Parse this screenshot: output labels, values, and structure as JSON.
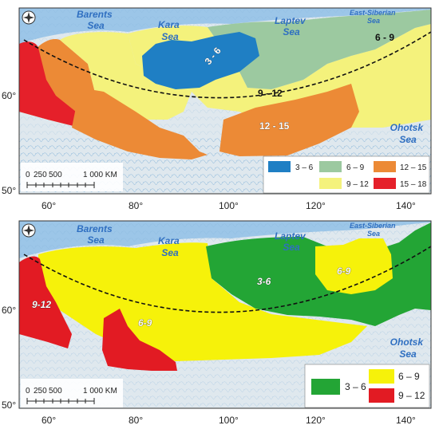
{
  "maps": [
    {
      "seas": {
        "barents": [
          "Barents",
          "Sea"
        ],
        "kara": [
          "Kara",
          "Sea"
        ],
        "laptev": [
          "Laptev",
          "Sea"
        ],
        "east_siberian": [
          "East-Siberian",
          "Sea"
        ],
        "okhotsk": [
          "Ohotsk",
          "Sea"
        ]
      },
      "zone_labels": [
        "3 - 6",
        "6 - 9",
        "9 - 12",
        "12 - 15"
      ],
      "lon_ticks": [
        "60°",
        "80°",
        "100°",
        "120°",
        "140°"
      ],
      "lat_ticks": [
        "60°",
        "50°"
      ],
      "scale": {
        "labels": [
          "0",
          "250",
          "500",
          "1 000 KM"
        ]
      },
      "legend": [
        {
          "label": "3 – 6",
          "color": "#1f7fc4"
        },
        {
          "label": "6 – 9",
          "color": "#9cc9a0"
        },
        {
          "label": "12 – 15",
          "color": "#ec8a36"
        },
        {
          "label": "9 – 12",
          "color": "#f4f27c"
        },
        {
          "label": "15 – 18",
          "color": "#e5202a"
        }
      ]
    },
    {
      "seas": {
        "barents": [
          "Barents",
          "Sea"
        ],
        "kara": [
          "Kara",
          "Sea"
        ],
        "laptev": [
          "Laptev",
          "Sea"
        ],
        "east_siberian": [
          "East-Siberian",
          "Sea"
        ],
        "okhotsk": [
          "Ohotsk",
          "Sea"
        ]
      },
      "zone_labels": [
        "9-12",
        "6-9",
        "3-6",
        "6-9"
      ],
      "lon_ticks": [
        "60°",
        "80°",
        "100°",
        "120°",
        "140°"
      ],
      "lat_ticks": [
        "60°",
        "50°"
      ],
      "scale": {
        "labels": [
          "0",
          "250",
          "500",
          "1 000 KM"
        ]
      },
      "legend": [
        {
          "label": "3 – 6",
          "color": "#23a535"
        },
        {
          "label": "6 – 9",
          "color": "#f6f20a"
        },
        {
          "label": "9 – 12",
          "color": "#e21b23"
        }
      ]
    }
  ],
  "icons": [
    "compass-icon"
  ]
}
